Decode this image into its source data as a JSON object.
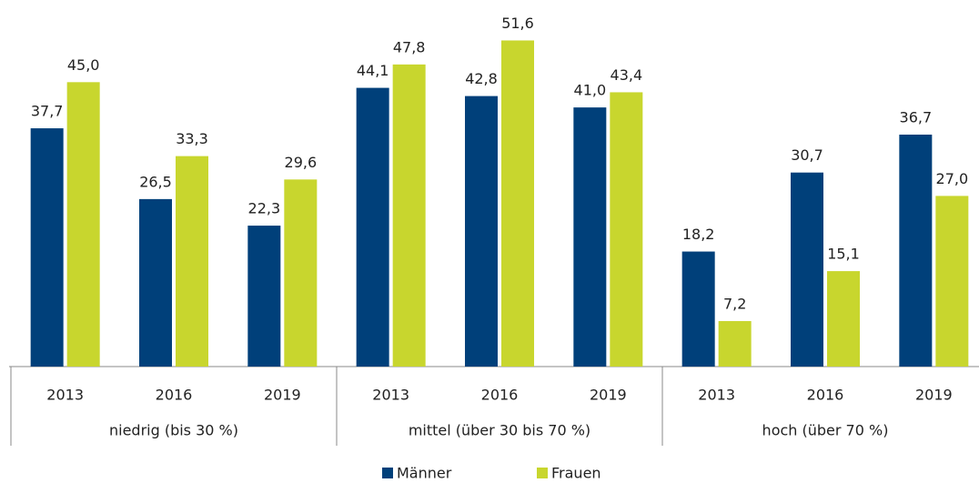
{
  "chart_data": {
    "type": "bar",
    "categories": [
      "2013",
      "2016",
      "2019",
      "2013",
      "2016",
      "2019",
      "2013",
      "2016",
      "2019"
    ],
    "groups": [
      "niedrig (bis 30 %)",
      "mittel (über 30 bis 70 %)",
      "hoch (über 70 %)"
    ],
    "series": [
      {
        "name": "Männer",
        "color": "#00407a",
        "values": [
          37.7,
          26.5,
          22.3,
          44.1,
          42.8,
          41.0,
          18.2,
          30.7,
          36.7
        ],
        "value_labels": [
          "37,7",
          "26,5",
          "22,3",
          "44,1",
          "42,8",
          "41,0",
          "18,2",
          "30,7",
          "36,7"
        ]
      },
      {
        "name": "Frauen",
        "color": "#c8d62e",
        "values": [
          45.0,
          33.3,
          29.6,
          47.8,
          51.6,
          43.4,
          7.2,
          15.1,
          27.0
        ],
        "value_labels": [
          "45,0",
          "33,3",
          "29,6",
          "47,8",
          "51,6",
          "43,4",
          "7,2",
          "15,1",
          "27,0"
        ]
      }
    ],
    "ylim": [
      0,
      58
    ],
    "legend": "bottom"
  }
}
